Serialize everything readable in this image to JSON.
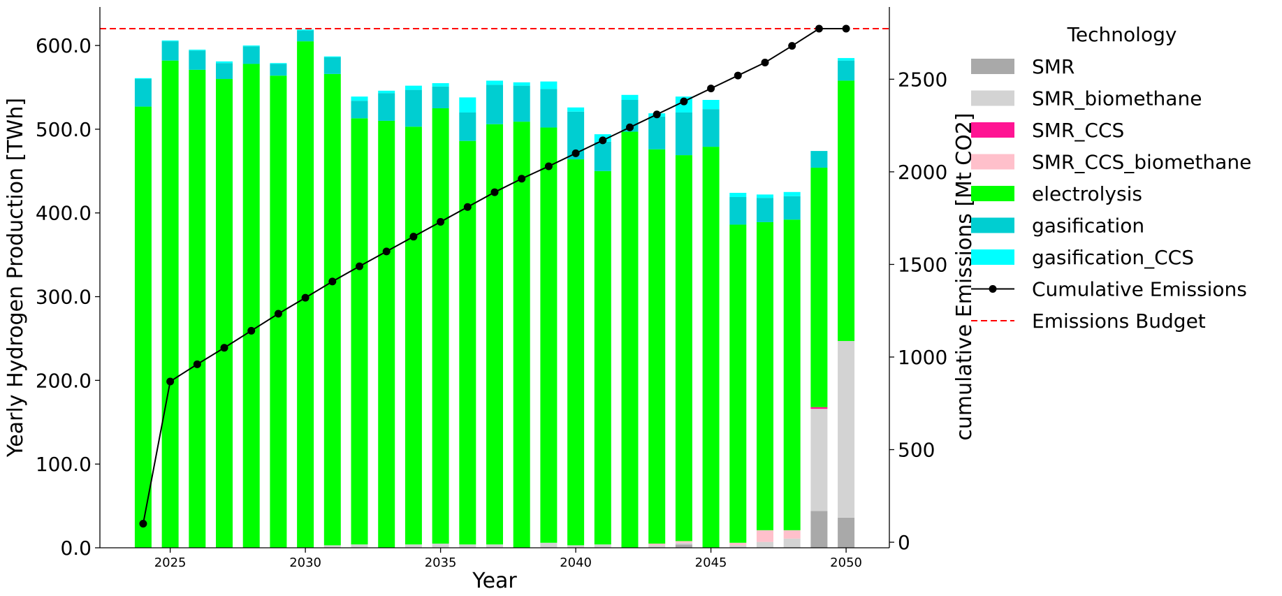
{
  "chart_data": {
    "type": "bar",
    "stacked": true,
    "xlabel": "Year",
    "ylabel": "Yearly Hydrogen Production [TWh]",
    "y2label": "cumulative Emissions [Mt CO2]",
    "ylim": [
      0,
      646
    ],
    "y2lim": [
      -30,
      2890
    ],
    "xlim": [
      2022.4,
      2051.6
    ],
    "yticks": [
      "0.0",
      "100.0",
      "200.0",
      "300.0",
      "400.0",
      "500.0",
      "600.0"
    ],
    "y2ticks": [
      "0",
      "500",
      "1000",
      "1500",
      "2000",
      "2500"
    ],
    "xticks": [
      "2025",
      "2030",
      "2035",
      "2040",
      "2045",
      "2050"
    ],
    "legend": {
      "title": "Technology",
      "placement": "outside-right"
    },
    "years": [
      2024,
      2025,
      2026,
      2027,
      2028,
      2029,
      2030,
      2031,
      2032,
      2033,
      2034,
      2035,
      2036,
      2037,
      2038,
      2039,
      2040,
      2041,
      2042,
      2043,
      2044,
      2045,
      2046,
      2047,
      2048,
      2049,
      2050
    ],
    "series": [
      {
        "name": "SMR",
        "color": "#a9a9a9",
        "values": [
          0,
          0,
          0,
          0,
          0,
          0,
          0,
          0,
          0,
          0,
          0,
          0,
          0,
          0,
          0,
          0,
          0,
          0,
          0,
          0,
          4,
          0,
          0,
          0,
          0,
          44,
          36
        ]
      },
      {
        "name": "SMR_biomethane",
        "color": "#d3d3d3",
        "values": [
          0,
          0,
          0,
          0,
          0,
          0,
          0,
          3,
          4,
          0,
          4,
          5,
          4,
          4,
          0,
          6,
          3,
          4,
          0,
          3,
          2,
          0,
          3,
          7,
          11,
          122,
          211
        ]
      },
      {
        "name": "SMR_CCS",
        "color": "#ff1493",
        "values": [
          0,
          0,
          0,
          0,
          0,
          0,
          0,
          0,
          0,
          0,
          0,
          0,
          0,
          0,
          0,
          0,
          0,
          0,
          0,
          0,
          0,
          0,
          0,
          0,
          0,
          2,
          0
        ]
      },
      {
        "name": "SMR_CCS_biomethane",
        "color": "#ffc0cb",
        "values": [
          0,
          0,
          0,
          0,
          0,
          0,
          0,
          0,
          0,
          0,
          0,
          0,
          0,
          0,
          0,
          0,
          0,
          0,
          0,
          2,
          2,
          0,
          3,
          14,
          10,
          0,
          0
        ]
      },
      {
        "name": "electrolysis",
        "color": "#00ff00",
        "values": [
          527,
          582,
          571,
          560,
          578,
          564,
          605,
          563,
          509,
          510,
          499,
          520,
          482,
          502,
          509,
          496,
          461,
          446,
          497,
          471,
          461,
          479,
          380,
          368,
          371,
          286,
          311
        ]
      },
      {
        "name": "gasification",
        "color": "#00ced1",
        "values": [
          33,
          23,
          23,
          19,
          21,
          14,
          13,
          20,
          21,
          33,
          44,
          26,
          34,
          47,
          43,
          46,
          57,
          35,
          38,
          39,
          51,
          45,
          33,
          29,
          28,
          20,
          24
        ]
      },
      {
        "name": "gasification_CCS",
        "color": "#00ffff",
        "values": [
          1,
          1,
          1,
          2,
          1,
          1,
          1,
          1,
          5,
          3,
          5,
          4,
          18,
          5,
          4,
          9,
          5,
          9,
          6,
          4,
          19,
          11,
          5,
          4,
          5,
          0,
          3
        ]
      }
    ],
    "line_series": [
      {
        "name": "Cumulative Emissions",
        "color": "#000000",
        "axis": "right",
        "values": [
          100,
          868,
          961,
          1050,
          1142,
          1234,
          1320,
          1408,
          1490,
          1570,
          1650,
          1730,
          1810,
          1890,
          1963,
          2030,
          2100,
          2170,
          2240,
          2310,
          2380,
          2450,
          2520,
          2590,
          2680,
          2773,
          2773
        ]
      },
      {
        "name": "Emissions Budget",
        "color": "#ff0000",
        "axis": "right",
        "style": "dashed",
        "value": 2773
      }
    ]
  }
}
